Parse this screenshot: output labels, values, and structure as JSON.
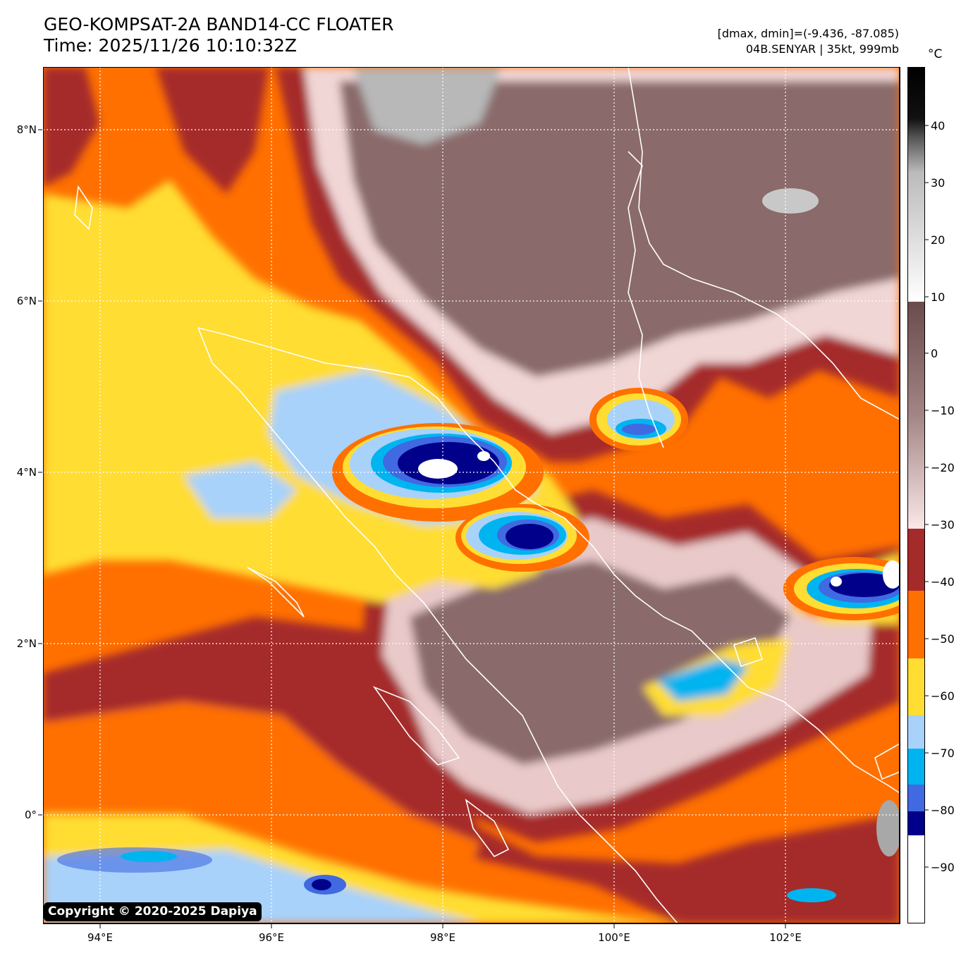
{
  "header": {
    "title_line1": "GEO-KOMPSAT-2A BAND14-CC FLOATER",
    "title_line2": "Time: 2025/11/26 10:10:32Z",
    "info_line1": "[dmax, dmin]=(-9.436, -87.085)",
    "info_line2": "04B.SENYAR | 35kt, 999mb"
  },
  "map": {
    "lon_labels": [
      "94°E",
      "96°E",
      "98°E",
      "100°E",
      "102°E"
    ],
    "lat_labels": [
      "8°N",
      "6°N",
      "4°N",
      "2°N",
      "0°"
    ],
    "lon_range": [
      93.33,
      103.33
    ],
    "lat_range": [
      -1.26,
      8.74
    ],
    "gridlines": "dotted white",
    "cold_cores": [
      {
        "lon": 98.2,
        "lat": 4.0,
        "note": "main convection"
      },
      {
        "lon": 99.1,
        "lat": 3.2
      },
      {
        "lon": 100.4,
        "lat": 4.5
      },
      {
        "lon": 102.8,
        "lat": 2.7
      },
      {
        "lon": 101.0,
        "lat": 1.4
      }
    ]
  },
  "colorbar": {
    "unit": "°C",
    "ticks": [
      "40",
      "30",
      "20",
      "10",
      "0",
      "−10",
      "−20",
      "−30",
      "−40",
      "−50",
      "−60",
      "−70",
      "−80",
      "−90"
    ],
    "range": [
      -100,
      50
    ],
    "colors": {
      "warm_gray_dark": "#000000",
      "brown": "#6b4b4b",
      "pink": "#f4dcdc",
      "dark_red": "#a52a2a",
      "orange": "#ff7000",
      "yellow": "#ffdd33",
      "light_blue": "#a8d2fa",
      "cyan": "#00b4f0",
      "royal_blue": "#4169e1",
      "navy": "#00008b",
      "white": "#ffffff"
    }
  },
  "footer": {
    "copyright": "Copyright © 2020-2025 Dapiya"
  }
}
